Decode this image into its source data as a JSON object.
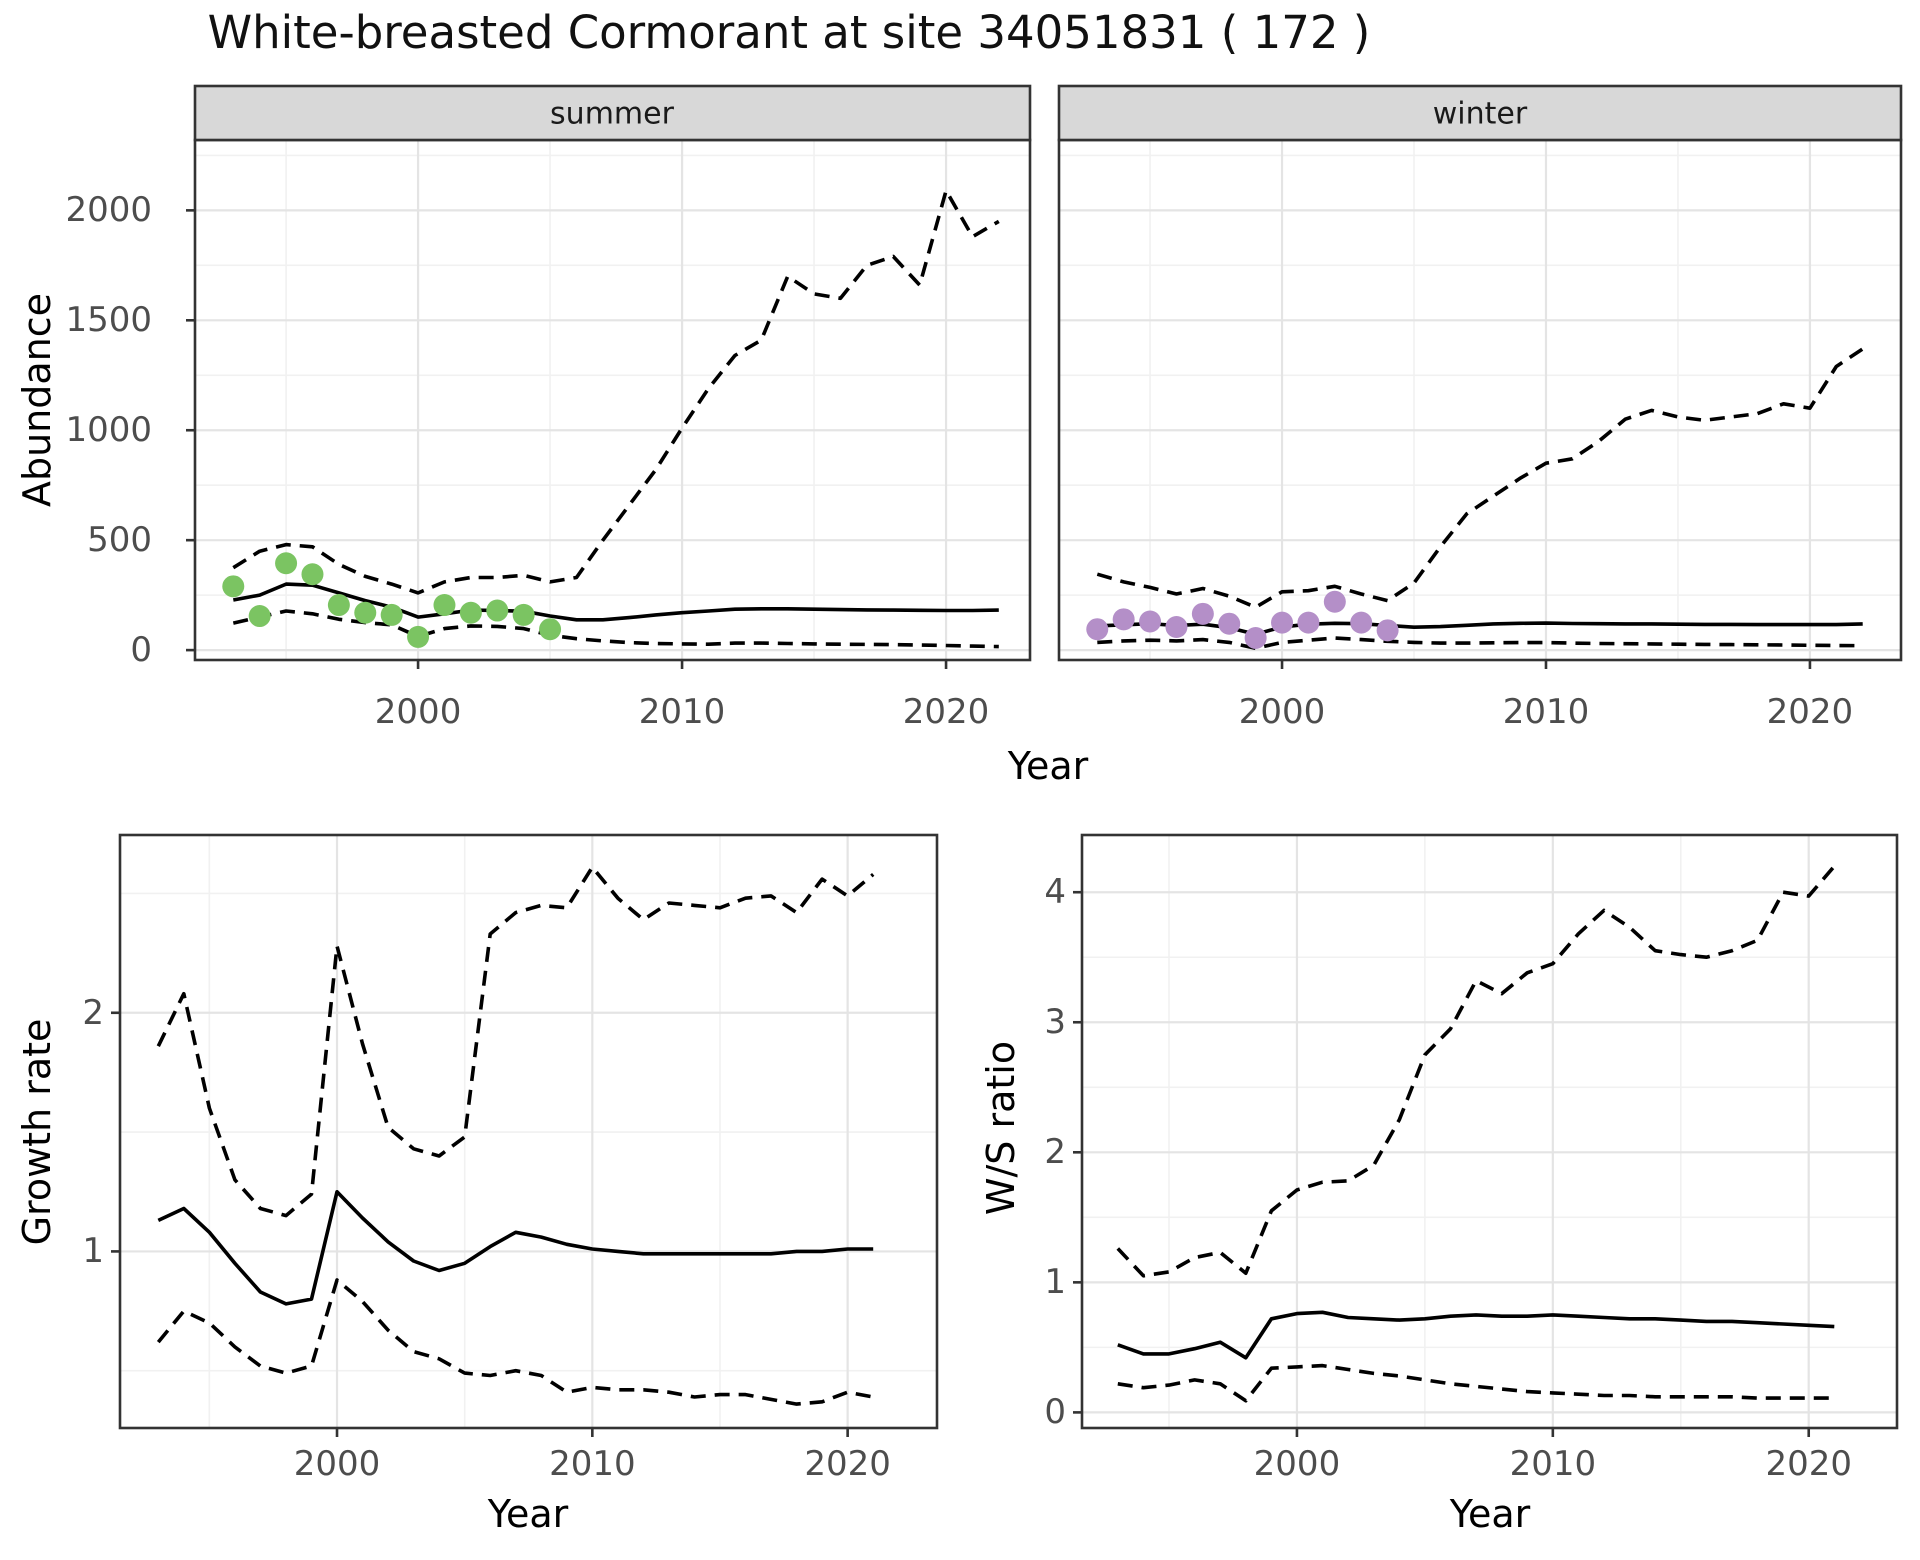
{
  "title": "White-breasted Cormorant at site 34051831 ( 172 )",
  "colors": {
    "summer_points": "#7bc462",
    "winter_points": "#b48fc8",
    "line": "#000000",
    "panel_border": "#333333",
    "grid_major": "#e4e4e4",
    "grid_minor": "#f1f1f1",
    "strip_bg": "#d8d8d8",
    "strip_border": "#333333",
    "tick_text": "#4d4d4d"
  },
  "chart_data": [
    {
      "type": "line",
      "facet_label": "summer",
      "xlabel": "Year",
      "ylabel": "Abundance",
      "xlim": [
        1991.55,
        2023.18
      ],
      "ylim": [
        -45,
        2320
      ],
      "x_breaks": [
        2000,
        2010,
        2020
      ],
      "x_minor_breaks": [
        1995,
        2005,
        2015
      ],
      "y_breaks": [
        0,
        500,
        1000,
        1500,
        2000
      ],
      "y_minor_breaks": [
        250,
        750,
        1250,
        1750,
        2250
      ],
      "x": [
        1993,
        1994,
        1995,
        1996,
        1997,
        1998,
        1999,
        2000,
        2001,
        2002,
        2003,
        2004,
        2005,
        2006,
        2007,
        2008,
        2009,
        2010,
        2011,
        2012,
        2013,
        2014,
        2015,
        2016,
        2017,
        2018,
        2019,
        2020,
        2021,
        2022
      ],
      "series": [
        {
          "name": "upper_ci",
          "style": "dashed",
          "values": [
            375,
            450,
            480,
            470,
            390,
            335,
            300,
            260,
            310,
            330,
            330,
            340,
            310,
            330,
            500,
            660,
            820,
            1010,
            1190,
            1340,
            1410,
            1700,
            1620,
            1600,
            1750,
            1790,
            1660,
            2090,
            1880,
            1950
          ]
        },
        {
          "name": "median",
          "style": "solid",
          "values": [
            228,
            250,
            300,
            295,
            260,
            225,
            195,
            150,
            165,
            182,
            180,
            177,
            155,
            138,
            138,
            148,
            160,
            170,
            178,
            186,
            188,
            188,
            186,
            184,
            183,
            182,
            181,
            180,
            180,
            182
          ]
        },
        {
          "name": "lower_ci",
          "style": "dashed",
          "values": [
            123,
            150,
            178,
            165,
            140,
            125,
            115,
            62,
            98,
            110,
            108,
            98,
            68,
            52,
            42,
            34,
            30,
            28,
            27,
            32,
            32,
            30,
            28,
            27,
            26,
            25,
            23,
            21,
            18,
            16
          ]
        }
      ],
      "points": {
        "name": "observed-counts",
        "color_key": "summer_points",
        "x": [
          1993,
          1994,
          1995,
          1996,
          1997,
          1998,
          1999,
          2000,
          2001,
          2002,
          2003,
          2004,
          2005
        ],
        "values": [
          290,
          155,
          395,
          345,
          205,
          170,
          160,
          60,
          205,
          170,
          180,
          160,
          95
        ]
      }
    },
    {
      "type": "line",
      "facet_label": "winter",
      "xlabel": "Year",
      "ylabel": "Abundance",
      "xlim": [
        1991.55,
        2023.45
      ],
      "ylim": [
        -45,
        2320
      ],
      "x_breaks": [
        2000,
        2010,
        2020
      ],
      "x_minor_breaks": [
        1995,
        2005,
        2015
      ],
      "y_breaks": [
        0,
        500,
        1000,
        1500,
        2000
      ],
      "y_minor_breaks": [
        250,
        750,
        1250,
        1750,
        2250
      ],
      "x": [
        1993,
        1994,
        1995,
        1996,
        1997,
        1998,
        1999,
        2000,
        2001,
        2002,
        2003,
        2004,
        2005,
        2006,
        2007,
        2008,
        2009,
        2010,
        2011,
        2012,
        2013,
        2014,
        2015,
        2016,
        2017,
        2018,
        2019,
        2020,
        2021,
        2022
      ],
      "series": [
        {
          "name": "upper_ci",
          "style": "dashed",
          "values": [
            345,
            310,
            285,
            255,
            280,
            245,
            195,
            265,
            270,
            290,
            255,
            225,
            305,
            470,
            620,
            700,
            780,
            850,
            870,
            950,
            1050,
            1090,
            1060,
            1045,
            1060,
            1075,
            1120,
            1100,
            1290,
            1370
          ]
        },
        {
          "name": "median",
          "style": "solid",
          "values": [
            110,
            115,
            120,
            112,
            118,
            102,
            72,
            105,
            118,
            122,
            120,
            112,
            104,
            107,
            113,
            119,
            122,
            123,
            121,
            120,
            119,
            119,
            118,
            117,
            117,
            116,
            116,
            116,
            116,
            119
          ]
        },
        {
          "name": "lower_ci",
          "style": "dashed",
          "values": [
            35,
            42,
            45,
            42,
            48,
            35,
            8,
            35,
            45,
            55,
            48,
            40,
            35,
            32,
            32,
            33,
            34,
            34,
            32,
            30,
            29,
            28,
            27,
            26,
            25,
            24,
            23,
            22,
            21,
            20
          ]
        }
      ],
      "points": {
        "name": "observed-counts",
        "color_key": "winter_points",
        "x": [
          1993,
          1994,
          1995,
          1996,
          1997,
          1998,
          1999,
          2000,
          2001,
          2002,
          2003,
          2004
        ],
        "values": [
          95,
          140,
          130,
          105,
          165,
          120,
          55,
          125,
          125,
          220,
          125,
          90
        ]
      }
    },
    {
      "type": "line",
      "facet_label": "",
      "xlabel": "Year",
      "ylabel": "Growth rate",
      "xlim": [
        1991.5,
        2023.5
      ],
      "ylim": [
        0.26,
        2.745
      ],
      "x_breaks": [
        2000,
        2010,
        2020
      ],
      "x_minor_breaks": [
        1995,
        2005,
        2015
      ],
      "y_breaks": [
        1,
        2
      ],
      "y_minor_breaks": [
        0.5,
        1.5,
        2.5
      ],
      "x": [
        1993,
        1994,
        1995,
        1996,
        1997,
        1998,
        1999,
        2000,
        2001,
        2002,
        2003,
        2004,
        2005,
        2006,
        2007,
        2008,
        2009,
        2010,
        2011,
        2012,
        2013,
        2014,
        2015,
        2016,
        2017,
        2018,
        2019,
        2020,
        2021
      ],
      "series": [
        {
          "name": "upper_ci",
          "style": "dashed",
          "values": [
            1.86,
            2.08,
            1.6,
            1.3,
            1.18,
            1.15,
            1.24,
            2.28,
            1.87,
            1.52,
            1.43,
            1.4,
            1.48,
            2.33,
            2.42,
            2.45,
            2.44,
            2.61,
            2.48,
            2.39,
            2.46,
            2.45,
            2.44,
            2.48,
            2.49,
            2.42,
            2.56,
            2.49,
            2.58
          ]
        },
        {
          "name": "median",
          "style": "solid",
          "values": [
            1.13,
            1.18,
            1.08,
            0.95,
            0.83,
            0.78,
            0.8,
            1.25,
            1.14,
            1.04,
            0.96,
            0.92,
            0.95,
            1.02,
            1.08,
            1.06,
            1.03,
            1.01,
            1.0,
            0.99,
            0.99,
            0.99,
            0.99,
            0.99,
            0.99,
            1.0,
            1.0,
            1.01,
            1.01
          ]
        },
        {
          "name": "lower_ci",
          "style": "dashed",
          "values": [
            0.62,
            0.75,
            0.7,
            0.6,
            0.52,
            0.49,
            0.52,
            0.88,
            0.79,
            0.67,
            0.58,
            0.55,
            0.49,
            0.48,
            0.5,
            0.48,
            0.41,
            0.43,
            0.42,
            0.42,
            0.41,
            0.39,
            0.4,
            0.4,
            0.38,
            0.36,
            0.37,
            0.41,
            0.39
          ]
        }
      ],
      "points": null
    },
    {
      "type": "line",
      "facet_label": "",
      "xlabel": "Year",
      "ylabel": "W/S ratio",
      "xlim": [
        1991.6,
        2023.45
      ],
      "ylim": [
        -0.12,
        4.44
      ],
      "x_breaks": [
        2000,
        2010,
        2020
      ],
      "x_minor_breaks": [
        1995,
        2005,
        2015
      ],
      "y_breaks": [
        0,
        1,
        2,
        3,
        4
      ],
      "y_minor_breaks": [
        0.5,
        1.5,
        2.5,
        3.5
      ],
      "x": [
        1993,
        1994,
        1995,
        1996,
        1997,
        1998,
        1999,
        2000,
        2001,
        2002,
        2003,
        2004,
        2005,
        2006,
        2007,
        2008,
        2009,
        2010,
        2011,
        2012,
        2013,
        2014,
        2015,
        2016,
        2017,
        2018,
        2019,
        2020,
        2021
      ],
      "series": [
        {
          "name": "upper_ci",
          "style": "dashed",
          "values": [
            1.26,
            1.05,
            1.08,
            1.19,
            1.23,
            1.07,
            1.55,
            1.71,
            1.77,
            1.78,
            1.9,
            2.25,
            2.75,
            2.95,
            3.32,
            3.22,
            3.38,
            3.45,
            3.68,
            3.86,
            3.73,
            3.55,
            3.52,
            3.5,
            3.55,
            3.63,
            4.0,
            3.97,
            4.2
          ]
        },
        {
          "name": "median",
          "style": "solid",
          "values": [
            0.52,
            0.45,
            0.45,
            0.49,
            0.54,
            0.42,
            0.72,
            0.76,
            0.77,
            0.73,
            0.72,
            0.71,
            0.72,
            0.74,
            0.75,
            0.74,
            0.74,
            0.75,
            0.74,
            0.73,
            0.72,
            0.72,
            0.71,
            0.7,
            0.7,
            0.69,
            0.68,
            0.67,
            0.66
          ]
        },
        {
          "name": "lower_ci",
          "style": "dashed",
          "values": [
            0.22,
            0.19,
            0.21,
            0.25,
            0.22,
            0.09,
            0.34,
            0.35,
            0.36,
            0.33,
            0.3,
            0.28,
            0.25,
            0.22,
            0.2,
            0.18,
            0.16,
            0.15,
            0.14,
            0.13,
            0.13,
            0.12,
            0.12,
            0.12,
            0.12,
            0.11,
            0.11,
            0.11,
            0.11
          ]
        }
      ],
      "points": null
    }
  ]
}
